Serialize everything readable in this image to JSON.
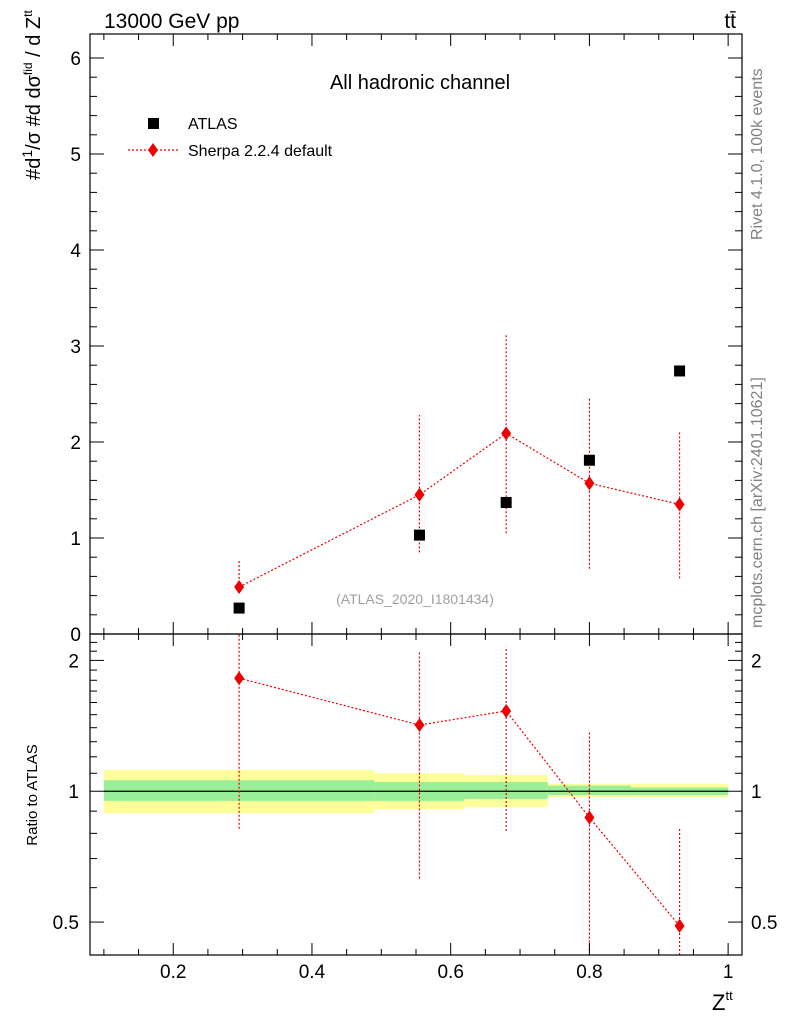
{
  "header": {
    "left": "13000 GeV pp",
    "right": "tt̄"
  },
  "side_labels": {
    "rivet": "Rivet 4.1.0,  100k events",
    "mcplots": "mcplots.cern.ch [arXiv:2401.10621]"
  },
  "chart_data": {
    "type": "scatter",
    "title": "All hadronic channel",
    "analysis_label": "(ATLAS_2020_I1801434)",
    "xlabel": "Z",
    "xlabel_sup": "tt",
    "ylabel_main": "#d1/σ#dσ^fid / d Z^tt",
    "ylabel_ratio": "Ratio to ATLAS",
    "xlim": [
      0.08,
      1.02
    ],
    "ylim_main": [
      0,
      6.25
    ],
    "ylim_ratio": [
      0.42,
      2.3
    ],
    "ratio_scale": "log",
    "x_ticks": [
      "0.2",
      "0.4",
      "0.6",
      "0.8",
      "1"
    ],
    "x_tick_values": [
      0.2,
      0.4,
      0.6,
      0.8,
      1.0
    ],
    "y_ticks_main": [
      "0",
      "1",
      "2",
      "3",
      "4",
      "5",
      "6"
    ],
    "y_tick_values_main": [
      0,
      1,
      2,
      3,
      4,
      5,
      6
    ],
    "y_ticks_ratio": [
      "0.5",
      "1",
      "2"
    ],
    "y_tick_values_ratio": [
      0.5,
      1,
      2
    ],
    "legend": [
      {
        "label": "ATLAS",
        "marker": "square",
        "color": "#000000"
      },
      {
        "label": "Sherpa 2.2.4 default",
        "marker": "diamond",
        "color": "#ee0000",
        "line": "dotted"
      }
    ],
    "series": [
      {
        "name": "ATLAS",
        "x": [
          0.295,
          0.555,
          0.68,
          0.8,
          0.93
        ],
        "y": [
          0.27,
          1.03,
          1.37,
          1.81,
          2.74
        ]
      },
      {
        "name": "Sherpa 2.2.4 default",
        "x": [
          0.295,
          0.555,
          0.68,
          0.8,
          0.93
        ],
        "y": [
          0.49,
          1.45,
          2.09,
          1.57,
          1.35
        ],
        "err_low": [
          0.49,
          0.85,
          1.05,
          0.68,
          0.58
        ],
        "err_high": [
          0.77,
          2.28,
          3.13,
          2.47,
          2.12
        ],
        "ratio": [
          1.82,
          1.42,
          1.53,
          0.87,
          0.49
        ],
        "ratio_low": [
          0.82,
          0.63,
          0.81,
          0.43,
          0.42
        ],
        "ratio_high": [
          2.3,
          2.1,
          2.15,
          1.38,
          0.82
        ]
      }
    ],
    "ratio_bands": [
      {
        "x0": 0.1,
        "x1": 0.49,
        "stat_lo": 0.95,
        "stat_hi": 1.06,
        "tot_lo": 0.89,
        "tot_hi": 1.12
      },
      {
        "x0": 0.49,
        "x1": 0.62,
        "stat_lo": 0.95,
        "stat_hi": 1.05,
        "tot_lo": 0.91,
        "tot_hi": 1.1
      },
      {
        "x0": 0.62,
        "x1": 0.74,
        "stat_lo": 0.96,
        "stat_hi": 1.05,
        "tot_lo": 0.92,
        "tot_hi": 1.09
      },
      {
        "x0": 0.74,
        "x1": 0.86,
        "stat_lo": 0.98,
        "stat_hi": 1.03,
        "tot_lo": 0.97,
        "tot_hi": 1.04
      },
      {
        "x0": 0.86,
        "x1": 1.0,
        "stat_lo": 0.98,
        "stat_hi": 1.02,
        "tot_lo": 0.97,
        "tot_hi": 1.04
      }
    ],
    "colors": {
      "stat_band": "#99ee99",
      "total_band": "#ffff99",
      "sherpa": "#ee0000",
      "data": "#000000",
      "watermark": "#a0a0a0",
      "side_text": "#808080"
    }
  }
}
